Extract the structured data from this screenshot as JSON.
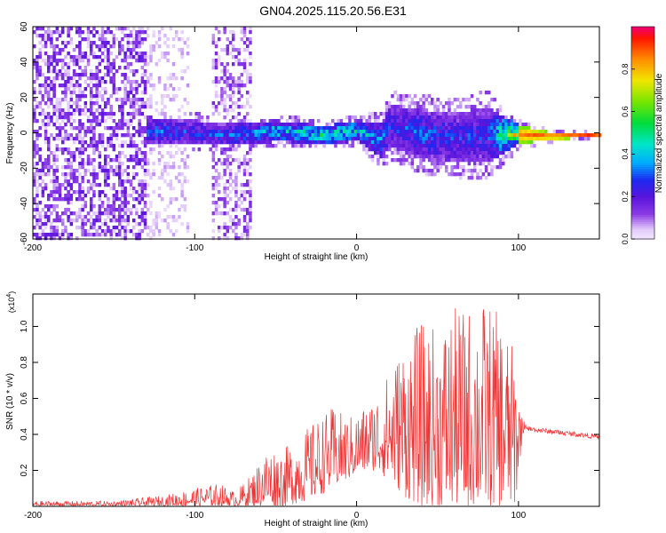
{
  "title": "GN04.2025.115.20.56.E31",
  "chart_data": [
    {
      "type": "heatmap",
      "xlabel": "Height of straight line (km)",
      "ylabel": "Frequency (Hz)",
      "xlim": [
        -200,
        150
      ],
      "ylim": [
        -60,
        60
      ],
      "xticks": [
        -200,
        -100,
        0,
        100
      ],
      "yticks": [
        -60,
        -40,
        -20,
        0,
        20,
        40,
        60
      ],
      "colorbar": {
        "label": "Normalized spectral amplitude",
        "range": [
          0,
          1
        ],
        "ticks": [
          "0.0",
          "0.2",
          "0.4",
          "0.6",
          "0.8"
        ]
      },
      "description_regions": [
        {
          "x_range": [
            -200,
            -130
          ],
          "f_range": [
            -60,
            60
          ],
          "amplitude": [
            0.05,
            0.15
          ]
        },
        {
          "x_range": [
            -130,
            15
          ],
          "f_range": [
            -10,
            10
          ],
          "amplitude": [
            0.1,
            0.7
          ]
        },
        {
          "x_range": [
            15,
            100
          ],
          "f_range": [
            -30,
            25
          ],
          "amplitude": [
            0.1,
            0.6
          ]
        },
        {
          "x_range": [
            100,
            150
          ],
          "f_range": [
            -3,
            3
          ],
          "amplitude": [
            0.5,
            0.95
          ]
        }
      ],
      "profile": {
        "x": [
          -200,
          -150,
          -130,
          -100,
          -80,
          -50,
          -20,
          0,
          15,
          20,
          40,
          60,
          80,
          100,
          120,
          150
        ],
        "center_freq": [
          0,
          0,
          2,
          1,
          0,
          2,
          0,
          2,
          -3,
          5,
          0,
          -2,
          0,
          0,
          -1,
          0
        ],
        "half_width": [
          60,
          60,
          8,
          7,
          6,
          6,
          5,
          6,
          10,
          12,
          14,
          14,
          16,
          5,
          2,
          1
        ],
        "amplitude": [
          0.08,
          0.08,
          0.35,
          0.3,
          0.35,
          0.45,
          0.55,
          0.5,
          0.4,
          0.3,
          0.35,
          0.3,
          0.3,
          0.85,
          0.9,
          0.9
        ]
      }
    },
    {
      "type": "line",
      "xlabel": "Height of straight line (km)",
      "ylabel": "SNR (10 * v/v)",
      "y_multiplier": "(x10",
      "y_multiplier_exp": "4",
      "y_multiplier_close": ")",
      "xlim": [
        -200,
        150
      ],
      "ylim": [
        0,
        1.18
      ],
      "xticks": [
        -200,
        -100,
        0,
        100
      ],
      "yticks": [
        0.2,
        0.4,
        0.6,
        0.8,
        1.0
      ],
      "ytick_labels": [
        "0.2",
        "0.4",
        "0.6",
        "0.8",
        "1.0"
      ],
      "color": "#ee3333",
      "series": [
        {
          "envelope_x": [
            -200,
            -150,
            -120,
            -100,
            -85,
            -75,
            -65,
            -55,
            -45,
            -35,
            -25,
            -15,
            -5,
            0,
            10,
            20,
            30,
            40,
            50,
            60,
            70,
            80,
            90,
            98,
            102,
            105,
            110,
            120,
            130,
            140,
            150
          ],
          "envelope_max": [
            0.03,
            0.03,
            0.06,
            0.1,
            0.13,
            0.08,
            0.18,
            0.33,
            0.32,
            0.4,
            0.48,
            0.55,
            0.5,
            0.52,
            0.6,
            0.75,
            0.95,
            1.02,
            1.0,
            1.1,
            1.12,
            1.15,
            1.05,
            0.85,
            0.5,
            0.45,
            0.44,
            0.43,
            0.42,
            0.41,
            0.4
          ],
          "envelope_min": [
            0.0,
            0.0,
            0.0,
            0.0,
            0.0,
            0.0,
            0.0,
            0.0,
            0.0,
            0.02,
            0.05,
            0.1,
            0.15,
            0.18,
            0.2,
            0.15,
            0.05,
            0.0,
            0.0,
            0.0,
            0.0,
            0.0,
            0.0,
            0.0,
            0.35,
            0.4,
            0.4,
            0.39,
            0.38,
            0.37,
            0.36
          ]
        }
      ]
    }
  ]
}
